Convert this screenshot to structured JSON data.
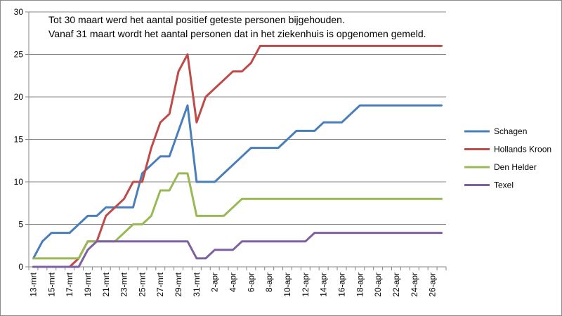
{
  "chart_data": {
    "type": "line",
    "annotation": [
      "Tot 30 maart werd het aantal positief geteste personen bijgehouden.",
      "Vanaf 31 maart wordt het aantal personen dat in het ziekenhuis is opgenomen gemeld."
    ],
    "categories": [
      "13-mrt",
      "14-mrt",
      "15-mrt",
      "16-mrt",
      "17-mrt",
      "18-mrt",
      "19-mrt",
      "20-mrt",
      "21-mrt",
      "22-mrt",
      "23-mrt",
      "24-mrt",
      "25-mrt",
      "26-mrt",
      "27-mrt",
      "28-mrt",
      "29-mrt",
      "30-mrt",
      "31-mrt",
      "1-apr",
      "2-apr",
      "3-apr",
      "4-apr",
      "5-apr",
      "6-apr",
      "7-apr",
      "8-apr",
      "9-apr",
      "10-apr",
      "11-apr",
      "12-apr",
      "13-apr",
      "14-apr",
      "15-apr",
      "16-apr",
      "17-apr",
      "18-apr",
      "19-apr",
      "20-apr",
      "21-apr",
      "22-apr",
      "23-apr",
      "24-apr",
      "25-apr",
      "26-apr",
      "27-apr"
    ],
    "x_tick_labels": [
      "13-mrt",
      "15-mrt",
      "17-mrt",
      "19-mrt",
      "21-mrt",
      "23-mrt",
      "25-mrt",
      "27-mrt",
      "29-mrt",
      "31-mrt",
      "2-apr",
      "4-apr",
      "6-apr",
      "8-apr",
      "10-apr",
      "12-apr",
      "14-apr",
      "16-apr",
      "18-apr",
      "20-apr",
      "22-apr",
      "24-apr",
      "26-apr"
    ],
    "ylim": [
      0,
      30
    ],
    "y_ticks": [
      0,
      5,
      10,
      15,
      20,
      25,
      30
    ],
    "grid": "horizontal",
    "legend": "right",
    "series": [
      {
        "name": "Schagen",
        "color": "#4a7ebb",
        "values": [
          1,
          3,
          4,
          4,
          4,
          5,
          6,
          6,
          7,
          7,
          7,
          7,
          11,
          12,
          13,
          13,
          16,
          19,
          10,
          10,
          10,
          11,
          12,
          13,
          14,
          14,
          14,
          14,
          15,
          16,
          16,
          16,
          17,
          17,
          17,
          18,
          19,
          19,
          19,
          19,
          19,
          19,
          19,
          19,
          19,
          19
        ]
      },
      {
        "name": "Hollands Kroon",
        "color": "#be4b48",
        "values": [
          0,
          0,
          0,
          0,
          0,
          1,
          3,
          3,
          6,
          7,
          8,
          10,
          10,
          14,
          17,
          18,
          23,
          25,
          17,
          20,
          21,
          22,
          23,
          23,
          24,
          26,
          26,
          26,
          26,
          26,
          26,
          26,
          26,
          26,
          26,
          26,
          26,
          26,
          26,
          26,
          26,
          26,
          26,
          26,
          26,
          26
        ]
      },
      {
        "name": "Den Helder",
        "color": "#98b954",
        "values": [
          1,
          1,
          1,
          1,
          1,
          1,
          3,
          3,
          3,
          3,
          4,
          5,
          5,
          6,
          9,
          9,
          11,
          11,
          6,
          6,
          6,
          6,
          7,
          8,
          8,
          8,
          8,
          8,
          8,
          8,
          8,
          8,
          8,
          8,
          8,
          8,
          8,
          8,
          8,
          8,
          8,
          8,
          8,
          8,
          8,
          8
        ]
      },
      {
        "name": "Texel",
        "color": "#7d60a0",
        "values": [
          0,
          0,
          0,
          0,
          0,
          0,
          2,
          3,
          3,
          3,
          3,
          3,
          3,
          3,
          3,
          3,
          3,
          3,
          1,
          1,
          2,
          2,
          2,
          3,
          3,
          3,
          3,
          3,
          3,
          3,
          3,
          4,
          4,
          4,
          4,
          4,
          4,
          4,
          4,
          4,
          4,
          4,
          4,
          4,
          4,
          4
        ]
      }
    ]
  }
}
